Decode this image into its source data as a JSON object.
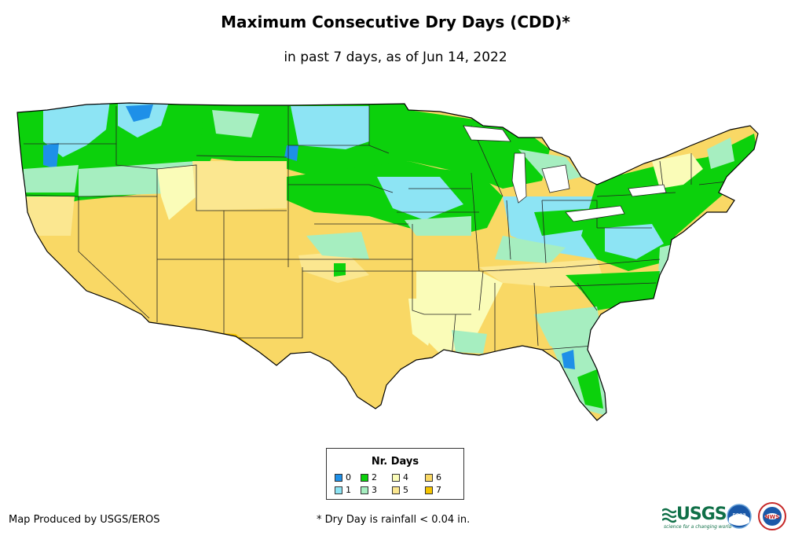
{
  "header": {
    "title": "Maximum Consecutive Dry Days (CDD)*",
    "subtitle": "in past 7 days, as of Jun 14, 2022"
  },
  "legend": {
    "title": "Nr. Days",
    "items": [
      {
        "label": "0",
        "color": "#1e90e8"
      },
      {
        "label": "1",
        "color": "#8de4f4"
      },
      {
        "label": "2",
        "color": "#0cd10c"
      },
      {
        "label": "3",
        "color": "#a6eec0"
      },
      {
        "label": "4",
        "color": "#fafcb8"
      },
      {
        "label": "5",
        "color": "#fbe790"
      },
      {
        "label": "6",
        "color": "#f9d865"
      },
      {
        "label": "7",
        "color": "#f6c500"
      }
    ]
  },
  "footer": {
    "credit": "Map Produced by USGS/EROS",
    "footnote": "* Dry Day is rainfall < 0.04 in.",
    "usgs_logo_text": "USGS",
    "usgs_tagline": "science for a changing world",
    "noaa_logo_text": "noaa",
    "nws_logo_text": "NWS"
  }
}
